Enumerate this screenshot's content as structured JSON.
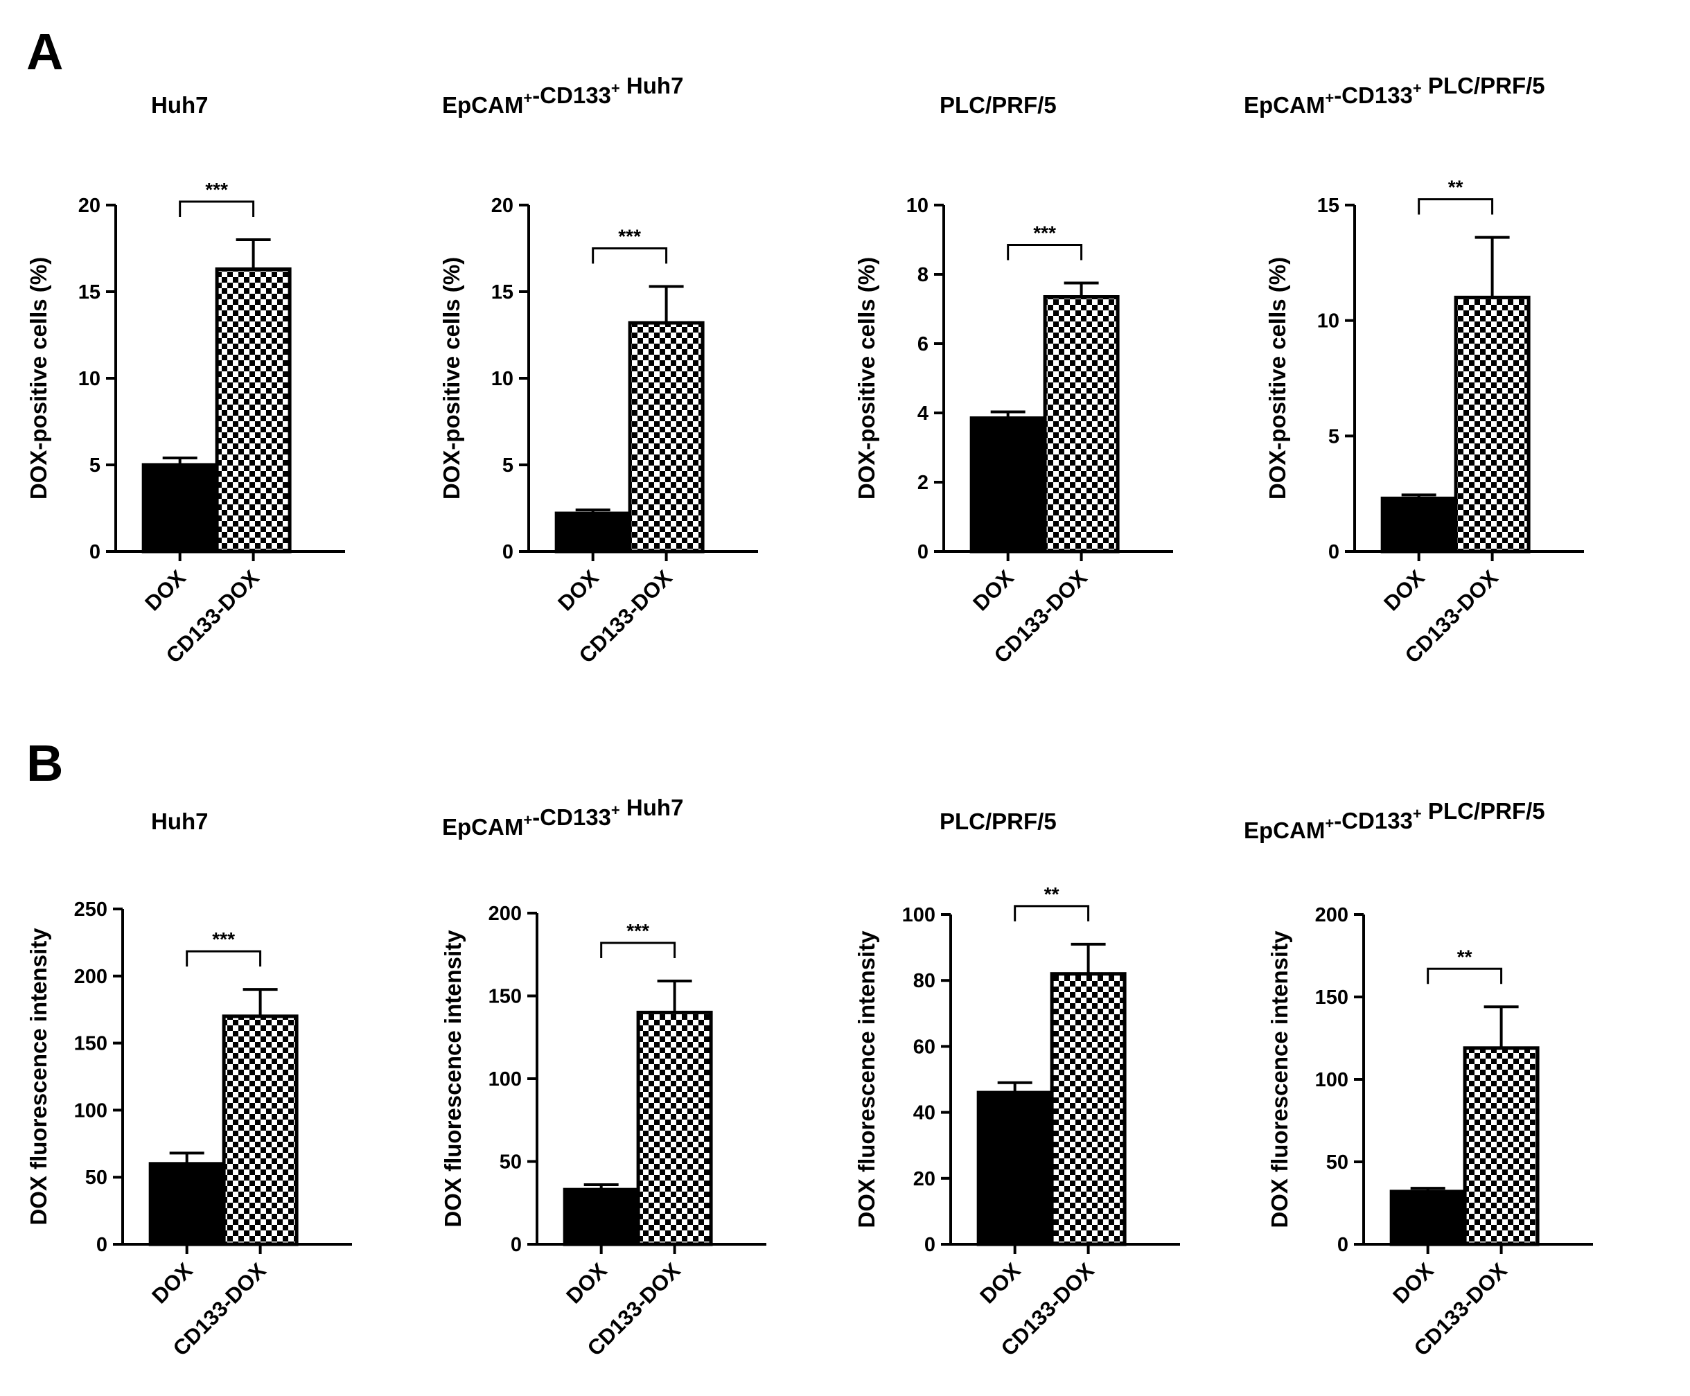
{
  "chart_data": [
    {
      "panel": "A",
      "type": "bar",
      "title": "Huh7",
      "ylabel": "DOX-positive cells (%)",
      "categories": [
        "DOX",
        "CD133-DOX"
      ],
      "values": [
        5.0,
        16.3
      ],
      "errors": [
        0.4,
        1.7
      ],
      "ylim": [
        0,
        20
      ],
      "yticks": [
        0,
        5,
        10,
        15,
        20
      ],
      "significance": "***"
    },
    {
      "type": "bar",
      "title": "EpCAM⁺-CD133⁺ Huh7",
      "ylabel": "DOX-positive cells (%)",
      "categories": [
        "DOX",
        "CD133-DOX"
      ],
      "values": [
        2.2,
        13.2
      ],
      "errors": [
        0.2,
        2.1
      ],
      "ylim": [
        0,
        20
      ],
      "yticks": [
        0,
        5,
        10,
        15,
        20
      ],
      "significance": "***"
    },
    {
      "type": "bar",
      "title": "PLC/PRF/5",
      "ylabel": "DOX-positive cells (%)",
      "categories": [
        "DOX",
        "CD133-DOX"
      ],
      "values": [
        3.85,
        7.35
      ],
      "errors": [
        0.18,
        0.4
      ],
      "ylim": [
        0,
        10
      ],
      "yticks": [
        0,
        2,
        4,
        6,
        8,
        10
      ],
      "significance": "***"
    },
    {
      "type": "bar",
      "title": "EpCAM⁺-CD133⁺ PLC/PRF/5",
      "ylabel": "DOX-positive cells (%)",
      "categories": [
        "DOX",
        "CD133-DOX"
      ],
      "values": [
        2.3,
        11.0
      ],
      "errors": [
        0.15,
        2.6
      ],
      "ylim": [
        0,
        15
      ],
      "yticks": [
        0,
        5,
        10,
        15
      ],
      "significance": "**"
    },
    {
      "panel": "B",
      "type": "bar",
      "title": "Huh7",
      "ylabel": "DOX fluorescence intensity",
      "categories": [
        "DOX",
        "CD133-DOX"
      ],
      "values": [
        60,
        170
      ],
      "errors": [
        8,
        20
      ],
      "ylim": [
        0,
        250
      ],
      "yticks": [
        0,
        50,
        100,
        150,
        200,
        250
      ],
      "significance": "***"
    },
    {
      "type": "bar",
      "title": "EpCAM⁺-CD133⁺ Huh7",
      "ylabel": "DOX fluorescence intensity",
      "categories": [
        "DOX",
        "CD133-DOX"
      ],
      "values": [
        33,
        140
      ],
      "errors": [
        3,
        19
      ],
      "ylim": [
        0,
        200
      ],
      "yticks": [
        0,
        50,
        100,
        150,
        200
      ],
      "significance": "***"
    },
    {
      "type": "bar",
      "title": "PLC/PRF/5",
      "ylabel": "DOX fluorescence intensity",
      "categories": [
        "DOX",
        "CD133-DOX"
      ],
      "values": [
        46,
        82
      ],
      "errors": [
        3,
        9
      ],
      "ylim": [
        0,
        100
      ],
      "yticks": [
        0,
        20,
        40,
        60,
        80,
        100
      ],
      "significance": "**"
    },
    {
      "type": "bar",
      "title": "EpCAM⁺-CD133⁺ PLC/PRF/5",
      "ylabel": "DOX fluorescence intensity",
      "categories": [
        "DOX",
        "CD133-DOX"
      ],
      "values": [
        32,
        119
      ],
      "errors": [
        2,
        25
      ],
      "ylim": [
        0,
        200
      ],
      "yticks": [
        0,
        50,
        100,
        150,
        200
      ],
      "significance": "**"
    }
  ]
}
